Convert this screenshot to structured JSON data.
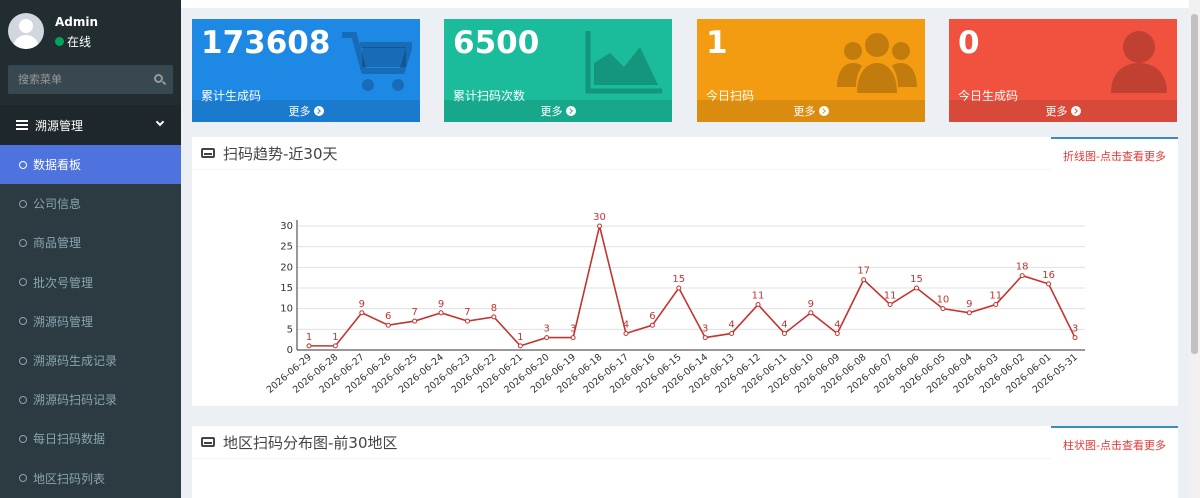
{
  "sidebar": {
    "username": "Admin",
    "status": "在线",
    "search_placeholder": "搜索菜单",
    "section": "溯源管理",
    "items": [
      {
        "label": "数据看板",
        "active": true
      },
      {
        "label": "公司信息"
      },
      {
        "label": "商品管理"
      },
      {
        "label": "批次号管理"
      },
      {
        "label": "溯源码管理"
      },
      {
        "label": "溯源码生成记录"
      },
      {
        "label": "溯源码扫码记录"
      },
      {
        "label": "每日扫码数据"
      },
      {
        "label": "地区扫码列表"
      }
    ]
  },
  "stats": [
    {
      "value": "173608",
      "label": "累计生成码",
      "more": "更多",
      "color": "#1e88e5",
      "icon": "cart-icon"
    },
    {
      "value": "6500",
      "label": "累计扫码次数",
      "more": "更多",
      "color": "#1abc9c",
      "icon": "area-chart-icon"
    },
    {
      "value": "1",
      "label": "今日扫码",
      "more": "更多",
      "color": "#f39c12",
      "icon": "users-icon"
    },
    {
      "value": "0",
      "label": "今日生成码",
      "more": "更多",
      "color": "#f0523f",
      "icon": "user-icon"
    }
  ],
  "trend_panel": {
    "title": "扫码趋势-近30天",
    "tab": "折线图-点击查看更多"
  },
  "region_panel": {
    "title": "地区扫码分布图-前30地区",
    "tab": "柱状图-点击查看更多"
  },
  "chart_data": {
    "type": "line",
    "x": [
      "2026-06-29",
      "2026-06-28",
      "2026-06-27",
      "2026-06-26",
      "2026-06-25",
      "2026-06-24",
      "2026-06-23",
      "2026-06-22",
      "2026-06-21",
      "2026-06-20",
      "2026-06-19",
      "2026-06-18",
      "2026-06-17",
      "2026-06-16",
      "2026-06-15",
      "2026-06-14",
      "2026-06-13",
      "2026-06-12",
      "2026-06-11",
      "2026-06-10",
      "2026-06-09",
      "2026-06-08",
      "2026-06-07",
      "2026-06-06",
      "2026-06-05",
      "2026-06-04",
      "2026-06-03",
      "2026-06-02",
      "2026-06-01",
      "2026-05-31"
    ],
    "values": [
      1,
      1,
      9,
      6,
      7,
      9,
      7,
      8,
      1,
      3,
      3,
      30,
      4,
      6,
      15,
      3,
      4,
      11,
      4,
      9,
      4,
      17,
      11,
      15,
      10,
      9,
      11,
      18,
      16,
      3
    ],
    "yticks": [
      0,
      5,
      10,
      15,
      20,
      25,
      30
    ],
    "ylim": [
      0,
      30
    ],
    "color": "#c23531",
    "grid": true
  }
}
